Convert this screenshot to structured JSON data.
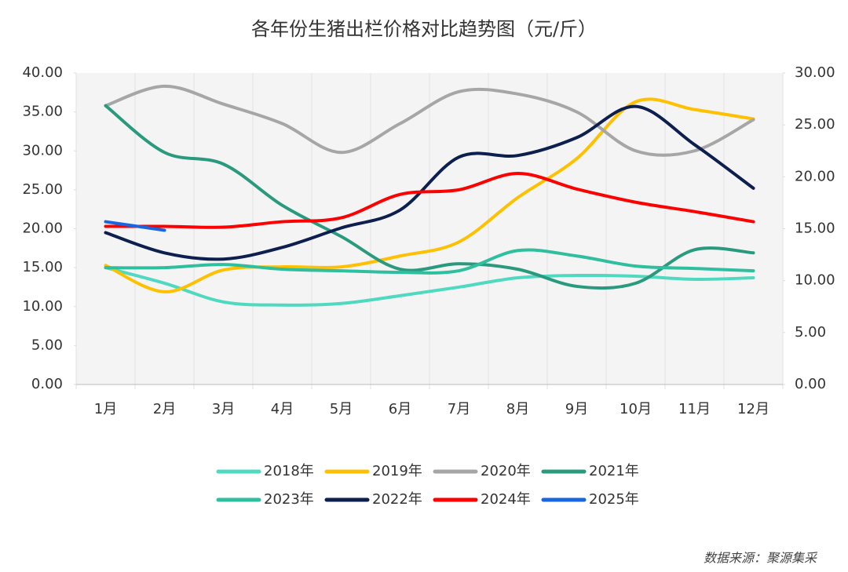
{
  "chart_data": {
    "type": "line",
    "title": "各年份生猪出栏价格对比趋势图（元/斤）",
    "categories": [
      "1月",
      "2月",
      "3月",
      "4月",
      "5月",
      "6月",
      "7月",
      "8月",
      "9月",
      "10月",
      "11月",
      "12月"
    ],
    "series": [
      {
        "name": "2018年",
        "color": "#4fd9c0",
        "values": [
          15.0,
          13.0,
          10.6,
          10.2,
          10.4,
          11.4,
          12.5,
          13.7,
          14.0,
          13.9,
          13.5,
          13.7
        ]
      },
      {
        "name": "2019年",
        "color": "#ffc000",
        "values": [
          15.3,
          11.9,
          14.7,
          15.1,
          15.1,
          16.5,
          18.3,
          24.0,
          29.0,
          36.3,
          35.3,
          34.1
        ]
      },
      {
        "name": "2020年",
        "color": "#a6a6a6",
        "values": [
          35.8,
          38.3,
          36.0,
          33.5,
          29.8,
          33.5,
          37.6,
          37.3,
          35.0,
          30.0,
          30.0,
          34.0
        ]
      },
      {
        "name": "2021年",
        "color": "#2a9a7e",
        "values": [
          35.8,
          29.8,
          28.3,
          23.0,
          19.0,
          14.8,
          15.5,
          14.8,
          12.6,
          13.0,
          17.3,
          16.9
        ]
      },
      {
        "name": "2023年",
        "color": "#2fbf9f",
        "values": [
          15.0,
          15.0,
          15.4,
          14.8,
          14.6,
          14.4,
          14.6,
          17.2,
          16.5,
          15.2,
          14.9,
          14.6
        ]
      },
      {
        "name": "2022年",
        "color": "#0d1f4e",
        "values": [
          19.5,
          16.9,
          16.1,
          17.6,
          20.1,
          22.4,
          29.2,
          29.4,
          31.7,
          35.7,
          30.8,
          25.2
        ]
      },
      {
        "name": "2024年",
        "color": "#ff0000",
        "values": [
          20.3,
          20.3,
          20.2,
          20.9,
          21.4,
          24.4,
          25.0,
          27.1,
          25.1,
          23.4,
          22.2,
          20.9
        ]
      },
      {
        "name": "2025年",
        "color": "#1a66e0",
        "values": [
          20.9,
          19.8,
          null,
          null,
          null,
          null,
          null,
          null,
          null,
          null,
          null,
          null
        ]
      }
    ],
    "ylim": [
      0,
      40
    ],
    "yticks": [
      {
        "value": 0,
        "label": "0.00"
      },
      {
        "value": 5,
        "label": "5.00"
      },
      {
        "value": 10,
        "label": "10.00"
      },
      {
        "value": 15,
        "label": "15.00"
      },
      {
        "value": 20,
        "label": "20.00"
      },
      {
        "value": 25,
        "label": "25.00"
      },
      {
        "value": 30,
        "label": "30.00"
      },
      {
        "value": 35,
        "label": "35.00"
      },
      {
        "value": 40,
        "label": "40.00"
      }
    ],
    "y2lim": [
      0,
      30
    ],
    "y2ticks": [
      {
        "value": 0,
        "label": "0.00"
      },
      {
        "value": 5,
        "label": "5.00"
      },
      {
        "value": 10,
        "label": "10.00"
      },
      {
        "value": 15,
        "label": "15.00"
      },
      {
        "value": 20,
        "label": "20.00"
      },
      {
        "value": 25,
        "label": "25.00"
      },
      {
        "value": 30,
        "label": "30.00"
      }
    ],
    "source": "数据来源：聚源集采"
  }
}
